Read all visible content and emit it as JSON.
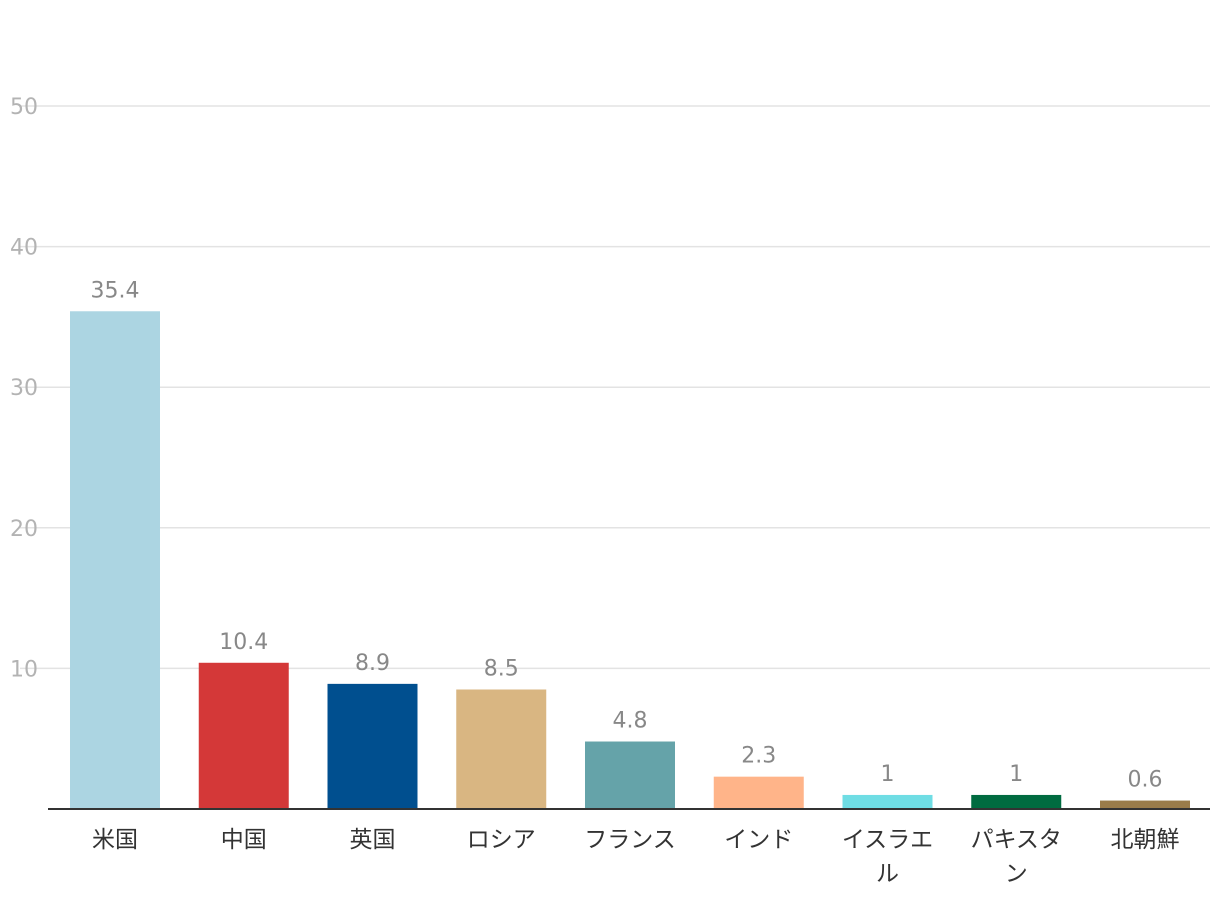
{
  "chart_data": {
    "type": "bar",
    "categories": [
      "米国",
      "中国",
      "英国",
      "ロシア",
      "フランス",
      "インド",
      "イスラエル",
      "パキスタン",
      "北朝鮮"
    ],
    "category_label_lines": [
      [
        "米国"
      ],
      [
        "中国"
      ],
      [
        "英国"
      ],
      [
        "ロシア"
      ],
      [
        "フランス"
      ],
      [
        "インド"
      ],
      [
        "イスラエ",
        "ル"
      ],
      [
        "パキスタ",
        "ン"
      ],
      [
        "北朝鮮"
      ]
    ],
    "values": [
      35.4,
      10.4,
      8.9,
      8.5,
      4.8,
      2.3,
      1,
      1,
      0.6
    ],
    "data_labels": [
      "35.4",
      "10.4",
      "8.9",
      "8.5",
      "4.8",
      "2.3",
      "1",
      "1",
      "0.6"
    ],
    "colors": [
      "#acd5e2",
      "#d43838",
      "#004f8f",
      "#d9b682",
      "#65a3a9",
      "#ffb489",
      "#6fdde4",
      "#006b40",
      "#9a7c4a"
    ],
    "yticks": [
      10,
      20,
      30,
      40,
      50
    ],
    "ylim": [
      0,
      50
    ],
    "grid": true,
    "title": "",
    "xlabel": "",
    "ylabel": ""
  }
}
